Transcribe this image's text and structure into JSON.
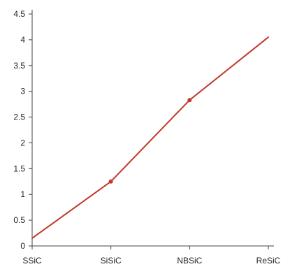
{
  "chart_data": {
    "type": "line",
    "title": "",
    "xlabel": "",
    "ylabel": "",
    "categories": [
      "SSiC",
      "SiSiC",
      "NBSiC",
      "ReSiC"
    ],
    "series": [
      {
        "values": [
          0.15,
          1.25,
          2.83,
          4.05
        ],
        "color": "#c0392b"
      }
    ],
    "ylim": [
      0,
      4.5
    ],
    "yticks": [
      "0",
      "0.5",
      "1",
      "1.5",
      "2",
      "2.5",
      "3",
      "3.5",
      "4",
      "4.5"
    ],
    "grid": false,
    "markers": [
      false,
      true,
      true,
      false
    ]
  }
}
